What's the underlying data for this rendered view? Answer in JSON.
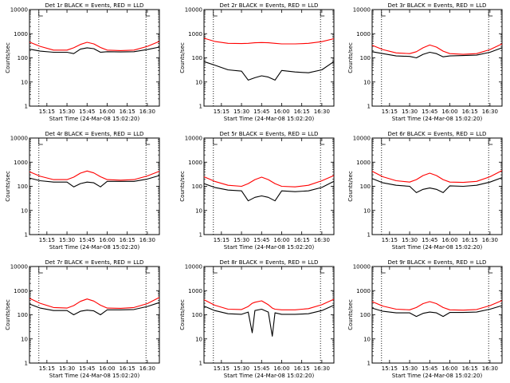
{
  "figure": {
    "xlabel": "Start Time (24-Mar-08 15:02:20)",
    "ylabel": "Counts/sec",
    "x_ticks": [
      "15:15",
      "15:30",
      "15:45",
      "16:00",
      "16:15",
      "16:30"
    ],
    "y_ticks": [
      "1",
      "10",
      "100",
      "1000",
      "10000"
    ],
    "colors": {
      "events": "#000000",
      "lld": "#ff0000",
      "axes": "#000000"
    }
  },
  "chart_data": [
    {
      "type": "line",
      "title": "Det 1r BLACK = Events, RED = LLD",
      "y_scale": "log",
      "ylim": [
        1,
        10000
      ],
      "xlim": [
        "15:02",
        "16:39"
      ],
      "grid": false,
      "vlines": [
        "15:09",
        "16:29"
      ],
      "x": [
        "15:02",
        "15:10",
        "15:20",
        "15:30",
        "15:35",
        "15:40",
        "15:45",
        "15:50",
        "15:55",
        "16:00",
        "16:10",
        "16:20",
        "16:30",
        "16:39"
      ],
      "series": [
        {
          "name": "Events",
          "color": "#000000",
          "values": [
            230,
            190,
            170,
            170,
            150,
            230,
            260,
            240,
            170,
            180,
            175,
            180,
            220,
            280
          ]
        },
        {
          "name": "LLD",
          "color": "#ff0000",
          "values": [
            450,
            300,
            210,
            210,
            260,
            360,
            440,
            380,
            270,
            210,
            200,
            210,
            300,
            480
          ]
        }
      ]
    },
    {
      "type": "line",
      "title": "Det 2r BLACK = Events, RED = LLD",
      "y_scale": "log",
      "ylim": [
        1,
        10000
      ],
      "xlim": [
        "15:02",
        "16:39"
      ],
      "grid": false,
      "vlines": [
        "15:09",
        "16:29"
      ],
      "x": [
        "15:02",
        "15:10",
        "15:20",
        "15:30",
        "15:35",
        "15:40",
        "15:45",
        "15:50",
        "15:55",
        "16:00",
        "16:10",
        "16:20",
        "16:30",
        "16:39"
      ],
      "series": [
        {
          "name": "Events",
          "color": "#000000",
          "values": [
            70,
            50,
            32,
            28,
            12,
            15,
            18,
            16,
            12,
            30,
            26,
            24,
            32,
            70
          ]
        },
        {
          "name": "LLD",
          "color": "#ff0000",
          "values": [
            650,
            480,
            400,
            390,
            400,
            420,
            430,
            420,
            400,
            380,
            380,
            400,
            470,
            620
          ]
        }
      ]
    },
    {
      "type": "line",
      "title": "Det 3r BLACK = Events, RED = LLD",
      "y_scale": "log",
      "ylim": [
        1,
        10000
      ],
      "xlim": [
        "15:02",
        "16:39"
      ],
      "grid": false,
      "vlines": [
        "15:09",
        "16:29"
      ],
      "x": [
        "15:02",
        "15:10",
        "15:20",
        "15:30",
        "15:35",
        "15:40",
        "15:45",
        "15:50",
        "15:55",
        "16:00",
        "16:10",
        "16:20",
        "16:30",
        "16:39"
      ],
      "series": [
        {
          "name": "Events",
          "color": "#000000",
          "values": [
            180,
            150,
            120,
            115,
            100,
            140,
            170,
            150,
            110,
            120,
            125,
            130,
            170,
            260
          ]
        },
        {
          "name": "LLD",
          "color": "#ff0000",
          "values": [
            330,
            220,
            160,
            150,
            180,
            260,
            340,
            280,
            190,
            150,
            140,
            150,
            220,
            380
          ]
        }
      ]
    },
    {
      "type": "line",
      "title": "Det 4r BLACK = Events, RED = LLD",
      "y_scale": "log",
      "ylim": [
        1,
        10000
      ],
      "xlim": [
        "15:02",
        "16:39"
      ],
      "grid": false,
      "vlines": [
        "15:09",
        "16:29"
      ],
      "x": [
        "15:02",
        "15:10",
        "15:20",
        "15:30",
        "15:35",
        "15:40",
        "15:45",
        "15:50",
        "15:55",
        "16:00",
        "16:10",
        "16:20",
        "16:30",
        "16:39"
      ],
      "series": [
        {
          "name": "Events",
          "color": "#000000",
          "values": [
            220,
            170,
            150,
            150,
            95,
            130,
            150,
            140,
            95,
            160,
            160,
            160,
            200,
            280
          ]
        },
        {
          "name": "LLD",
          "color": "#ff0000",
          "values": [
            400,
            260,
            190,
            190,
            240,
            350,
            430,
            360,
            250,
            190,
            180,
            190,
            270,
            420
          ]
        }
      ]
    },
    {
      "type": "line",
      "title": "Det 5r BLACK = Events, RED = LLD",
      "y_scale": "log",
      "ylim": [
        1,
        10000
      ],
      "xlim": [
        "15:02",
        "16:39"
      ],
      "grid": false,
      "vlines": [
        "15:09",
        "16:29"
      ],
      "x": [
        "15:02",
        "15:10",
        "15:20",
        "15:30",
        "15:35",
        "15:40",
        "15:45",
        "15:50",
        "15:55",
        "16:00",
        "16:10",
        "16:20",
        "16:30",
        "16:39"
      ],
      "series": [
        {
          "name": "Events",
          "color": "#000000",
          "values": [
            130,
            90,
            70,
            65,
            25,
            35,
            40,
            35,
            25,
            65,
            60,
            65,
            90,
            160
          ]
        },
        {
          "name": "LLD",
          "color": "#ff0000",
          "values": [
            250,
            160,
            110,
            100,
            130,
            190,
            240,
            190,
            130,
            100,
            95,
            110,
            170,
            280
          ]
        }
      ]
    },
    {
      "type": "line",
      "title": "Det 6r BLACK = Events, RED = LLD",
      "y_scale": "log",
      "ylim": [
        1,
        10000
      ],
      "xlim": [
        "15:02",
        "16:39"
      ],
      "grid": false,
      "vlines": [
        "15:09",
        "16:29"
      ],
      "x": [
        "15:02",
        "15:10",
        "15:20",
        "15:30",
        "15:35",
        "15:40",
        "15:45",
        "15:50",
        "15:55",
        "16:00",
        "16:10",
        "16:20",
        "16:30",
        "16:39"
      ],
      "series": [
        {
          "name": "Events",
          "color": "#000000",
          "values": [
            210,
            140,
            110,
            100,
            55,
            75,
            85,
            75,
            55,
            105,
            100,
            110,
            150,
            230
          ]
        },
        {
          "name": "LLD",
          "color": "#ff0000",
          "values": [
            420,
            250,
            170,
            150,
            190,
            280,
            350,
            280,
            190,
            150,
            145,
            160,
            250,
            450
          ]
        }
      ]
    },
    {
      "type": "line",
      "title": "Det 7r BLACK = Events, RED = LLD",
      "y_scale": "log",
      "ylim": [
        1,
        10000
      ],
      "xlim": [
        "15:02",
        "16:39"
      ],
      "grid": false,
      "vlines": [
        "15:09",
        "16:29"
      ],
      "x": [
        "15:02",
        "15:10",
        "15:20",
        "15:30",
        "15:35",
        "15:40",
        "15:45",
        "15:50",
        "15:55",
        "16:00",
        "16:10",
        "16:20",
        "16:30",
        "16:39"
      ],
      "series": [
        {
          "name": "Events",
          "color": "#000000",
          "values": [
            280,
            190,
            150,
            150,
            100,
            140,
            155,
            145,
            100,
            160,
            160,
            165,
            220,
            320
          ]
        },
        {
          "name": "LLD",
          "color": "#ff0000",
          "values": [
            480,
            300,
            200,
            190,
            240,
            360,
            450,
            370,
            250,
            190,
            185,
            200,
            290,
            520
          ]
        }
      ]
    },
    {
      "type": "line",
      "title": "Det 8r BLACK = Events, RED = LLD",
      "y_scale": "log",
      "ylim": [
        1,
        10000
      ],
      "xlim": [
        "15:02",
        "16:39"
      ],
      "grid": false,
      "vlines": [
        "15:09",
        "16:29"
      ],
      "x": [
        "15:02",
        "15:10",
        "15:20",
        "15:30",
        "15:35",
        "15:38",
        "15:40",
        "15:45",
        "15:50",
        "15:53",
        "15:55",
        "16:00",
        "16:10",
        "16:20",
        "16:30",
        "16:39"
      ],
      "series": [
        {
          "name": "Events",
          "color": "#000000",
          "values": [
            230,
            150,
            110,
            105,
            130,
            18,
            150,
            170,
            130,
            13,
            120,
            105,
            105,
            110,
            150,
            250
          ]
        },
        {
          "name": "LLD",
          "color": "#ff0000",
          "values": [
            420,
            250,
            170,
            165,
            220,
            300,
            330,
            380,
            260,
            190,
            170,
            160,
            160,
            180,
            260,
            440
          ]
        }
      ]
    },
    {
      "type": "line",
      "title": "Det 9r BLACK = Events, RED = LLD",
      "y_scale": "log",
      "ylim": [
        1,
        10000
      ],
      "xlim": [
        "15:02",
        "16:39"
      ],
      "grid": false,
      "vlines": [
        "15:09",
        "16:29"
      ],
      "x": [
        "15:02",
        "15:10",
        "15:20",
        "15:30",
        "15:35",
        "15:40",
        "15:45",
        "15:50",
        "15:55",
        "16:00",
        "16:10",
        "16:20",
        "16:30",
        "16:39"
      ],
      "series": [
        {
          "name": "Events",
          "color": "#000000",
          "values": [
            190,
            140,
            120,
            120,
            85,
            115,
            130,
            120,
            85,
            125,
            125,
            130,
            170,
            240
          ]
        },
        {
          "name": "LLD",
          "color": "#ff0000",
          "values": [
            350,
            230,
            170,
            160,
            200,
            290,
            350,
            290,
            200,
            160,
            155,
            165,
            240,
            390
          ]
        }
      ]
    }
  ]
}
